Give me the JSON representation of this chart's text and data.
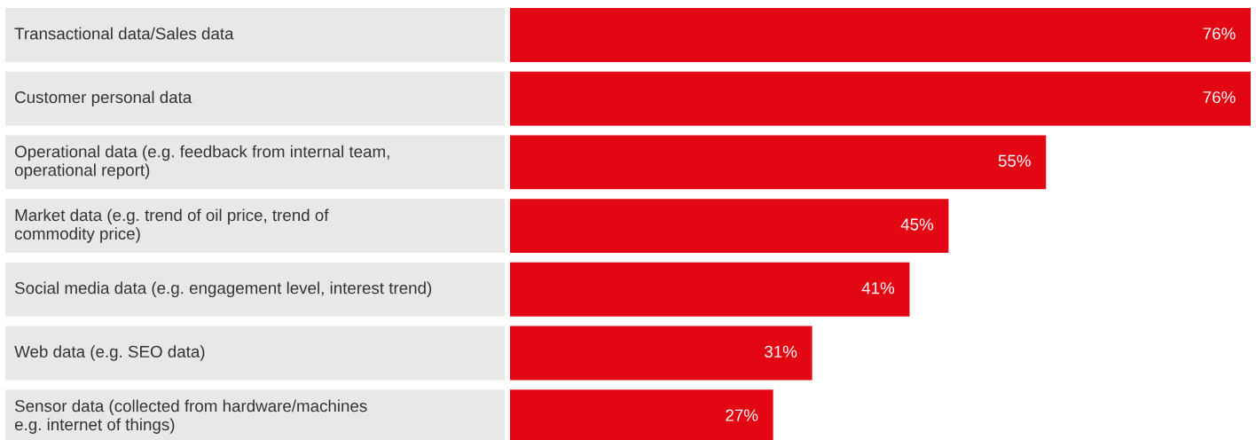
{
  "chart_data": {
    "type": "bar",
    "orientation": "horizontal",
    "data_labels": true,
    "categories": [
      "Transactional data/Sales data",
      "Customer personal data",
      "Operational data (e.g. feedback from internal team,\noperational report)",
      "Market data (e.g. trend of oil price, trend of\ncommodity price)",
      "Social media data (e.g. engagement level, interest trend)",
      "Web data (e.g. SEO data)",
      "Sensor data (collected from hardware/machines\ne.g. internet of things)"
    ],
    "values": [
      76,
      76,
      55,
      45,
      41,
      31,
      27
    ],
    "value_labels": [
      "76%",
      "76%",
      "55%",
      "45%",
      "41%",
      "31%",
      "27%"
    ],
    "color": "#e30613"
  }
}
